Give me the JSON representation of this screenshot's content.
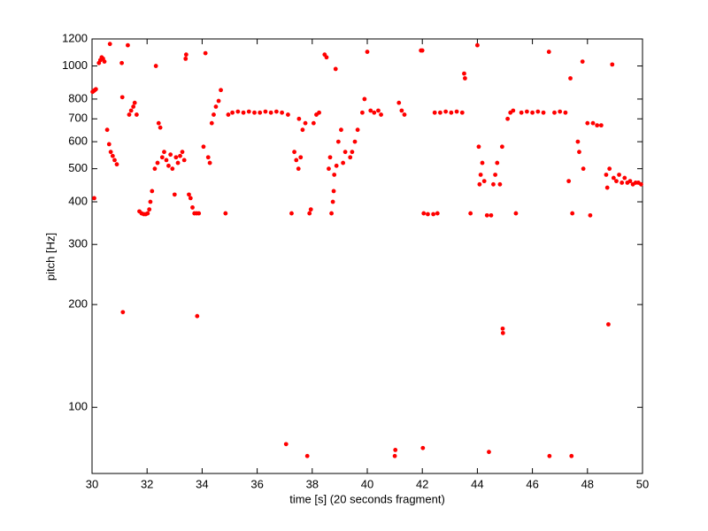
{
  "chart_data": {
    "type": "scatter",
    "xlabel": "time [s] (20 seconds fragment)",
    "ylabel": "pitch [Hz]",
    "color": "#ff0000",
    "ylog": true,
    "xlim": [
      30,
      50
    ],
    "ylim": [
      64,
      1200
    ],
    "xticks": [
      30,
      32,
      34,
      36,
      38,
      40,
      42,
      44,
      46,
      48,
      50
    ],
    "yticks": [
      100,
      200,
      300,
      400,
      500,
      600,
      700,
      800,
      1000,
      1200
    ],
    "x": [
      30.02,
      30.06,
      30.1,
      30.14,
      30.08,
      30.25,
      30.3,
      30.35,
      30.4,
      30.45,
      30.65,
      30.55,
      30.62,
      30.68,
      30.75,
      30.82,
      30.9,
      31.08,
      31.1,
      31.12,
      31.3,
      31.35,
      31.42,
      31.5,
      31.55,
      31.62,
      31.72,
      31.8,
      31.88,
      31.95,
      32.02,
      32.08,
      32.12,
      32.18,
      32.28,
      32.32,
      32.38,
      32.42,
      32.48,
      32.55,
      32.62,
      32.7,
      32.78,
      32.85,
      32.92,
      33.0,
      33.05,
      33.12,
      33.2,
      33.28,
      33.35,
      33.4,
      33.42,
      33.52,
      33.58,
      33.65,
      33.72,
      33.8,
      33.88,
      33.82,
      34.05,
      34.12,
      34.22,
      34.28,
      34.35,
      34.42,
      34.5,
      34.6,
      34.68,
      34.85,
      34.95,
      35.1,
      35.3,
      35.5,
      35.7,
      35.9,
      36.1,
      36.3,
      36.5,
      36.7,
      36.9,
      37.05,
      37.12,
      37.25,
      37.35,
      37.42,
      37.5,
      37.58,
      37.52,
      37.65,
      37.75,
      37.82,
      37.9,
      37.95,
      38.05,
      38.15,
      38.25,
      38.45,
      38.52,
      38.6,
      38.65,
      38.7,
      38.75,
      38.78,
      38.8,
      38.85,
      38.88,
      38.95,
      39.05,
      39.12,
      39.2,
      39.38,
      39.45,
      39.55,
      39.65,
      39.82,
      39.9,
      40.0,
      40.12,
      40.25,
      40.4,
      40.5,
      41.0,
      41.02,
      41.15,
      41.25,
      41.35,
      41.95,
      42.0,
      42.02,
      42.05,
      42.2,
      42.4,
      42.55,
      42.45,
      42.65,
      42.85,
      43.05,
      43.25,
      43.45,
      43.52,
      43.55,
      43.75,
      44.0,
      44.05,
      44.08,
      44.12,
      44.18,
      44.25,
      44.35,
      44.42,
      44.5,
      44.58,
      44.65,
      44.72,
      44.82,
      44.9,
      44.92,
      44.93,
      45.1,
      45.2,
      45.3,
      45.4,
      45.6,
      45.8,
      46.0,
      46.2,
      46.4,
      46.6,
      46.62,
      46.8,
      47.0,
      47.2,
      47.32,
      47.38,
      47.42,
      47.45,
      47.65,
      47.7,
      47.82,
      47.85,
      48.0,
      48.1,
      48.2,
      48.35,
      48.5,
      48.68,
      48.72,
      48.76,
      48.8,
      48.9,
      48.95,
      49.05,
      49.15,
      49.25,
      49.35,
      49.45,
      49.55,
      49.65,
      49.75,
      49.85,
      49.95
    ],
    "y": [
      840,
      845,
      850,
      855,
      410,
      1020,
      1040,
      1060,
      1050,
      1030,
      1160,
      650,
      590,
      560,
      545,
      530,
      515,
      1020,
      810,
      190,
      1150,
      720,
      740,
      760,
      780,
      720,
      375,
      370,
      368,
      368,
      370,
      380,
      400,
      430,
      500,
      1000,
      520,
      680,
      660,
      540,
      560,
      530,
      510,
      550,
      500,
      420,
      540,
      520,
      545,
      560,
      530,
      1050,
      1080,
      420,
      410,
      385,
      370,
      370,
      370,
      185,
      580,
      1090,
      540,
      520,
      680,
      720,
      760,
      790,
      850,
      370,
      720,
      730,
      735,
      730,
      735,
      730,
      730,
      735,
      730,
      735,
      730,
      78,
      720,
      370,
      560,
      530,
      500,
      540,
      700,
      650,
      680,
      72,
      370,
      380,
      680,
      720,
      730,
      1080,
      1060,
      500,
      540,
      370,
      400,
      430,
      480,
      980,
      510,
      600,
      650,
      520,
      560,
      540,
      560,
      600,
      650,
      730,
      800,
      1100,
      740,
      730,
      740,
      720,
      72,
      75,
      780,
      740,
      720,
      1110,
      1110,
      76,
      370,
      368,
      368,
      370,
      730,
      730,
      735,
      730,
      735,
      730,
      950,
      920,
      370,
      1150,
      580,
      450,
      480,
      520,
      460,
      365,
      74,
      365,
      450,
      480,
      520,
      450,
      580,
      170,
      165,
      700,
      730,
      740,
      370,
      730,
      735,
      730,
      735,
      730,
      1100,
      72,
      730,
      735,
      730,
      460,
      920,
      72,
      370,
      600,
      560,
      1030,
      500,
      680,
      365,
      680,
      670,
      670,
      480,
      440,
      175,
      500,
      1010,
      470,
      460,
      480,
      455,
      470,
      455,
      460,
      450,
      455,
      455,
      450
    ]
  }
}
